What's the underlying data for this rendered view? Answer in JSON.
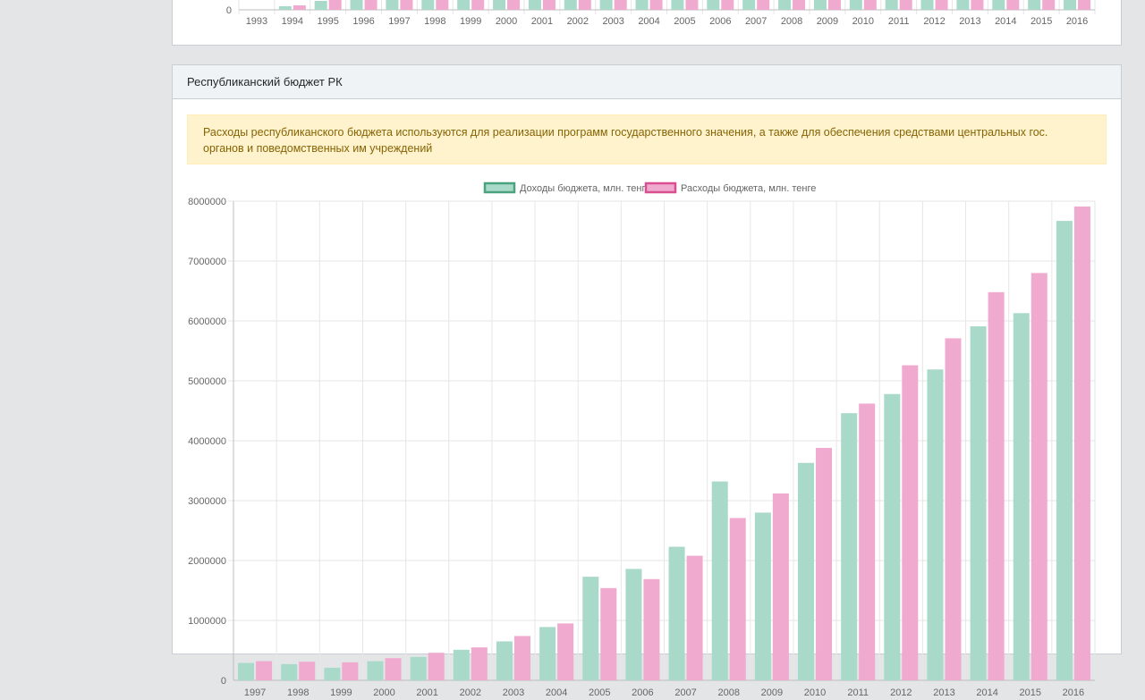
{
  "top_chart": {
    "categories": [
      "1993",
      "1994",
      "1995",
      "1996",
      "1997",
      "1998",
      "1999",
      "2000",
      "2001",
      "2002",
      "2003",
      "2004",
      "2005",
      "2006",
      "2007",
      "2008",
      "2009",
      "2010",
      "2011",
      "2012",
      "2013",
      "2014",
      "2015",
      "2016"
    ],
    "zero_label": "0"
  },
  "card": {
    "title": "Республиканский бюджет РК",
    "alert_text": "Расходы республиканского бюджета используются для реализации программ государственного значения, а также для обеспечения средствами центральных гос. органов и поведомственных им учреждений"
  },
  "chart_data": {
    "type": "bar",
    "categories": [
      "1997",
      "1998",
      "1999",
      "2000",
      "2001",
      "2002",
      "2003",
      "2004",
      "2005",
      "2006",
      "2007",
      "2008",
      "2009",
      "2010",
      "2011",
      "2012",
      "2013",
      "2014",
      "2015",
      "2016"
    ],
    "series": [
      {
        "name": "Доходы бюджета, млн. тенге",
        "color": "#a9d9c9",
        "border": "#4aa37f",
        "values": [
          290000,
          270000,
          210000,
          320000,
          390000,
          510000,
          650000,
          890000,
          1730000,
          1860000,
          2230000,
          3320000,
          2800000,
          3630000,
          4460000,
          4780000,
          5190000,
          5910000,
          6130000,
          7670000
        ]
      },
      {
        "name": "Расходы бюджета, млн. тенге",
        "color": "#f0a9cf",
        "border": "#d94f8f",
        "values": [
          320000,
          310000,
          300000,
          370000,
          460000,
          550000,
          740000,
          950000,
          1540000,
          1690000,
          2080000,
          2710000,
          3120000,
          3880000,
          4620000,
          5260000,
          5710000,
          6480000,
          6800000,
          7910000
        ]
      }
    ],
    "ylim": [
      0,
      8000000
    ],
    "yticks": [
      "0",
      "1000000",
      "2000000",
      "3000000",
      "4000000",
      "5000000",
      "6000000",
      "7000000",
      "8000000"
    ],
    "grid": true,
    "legend_position": "top"
  }
}
